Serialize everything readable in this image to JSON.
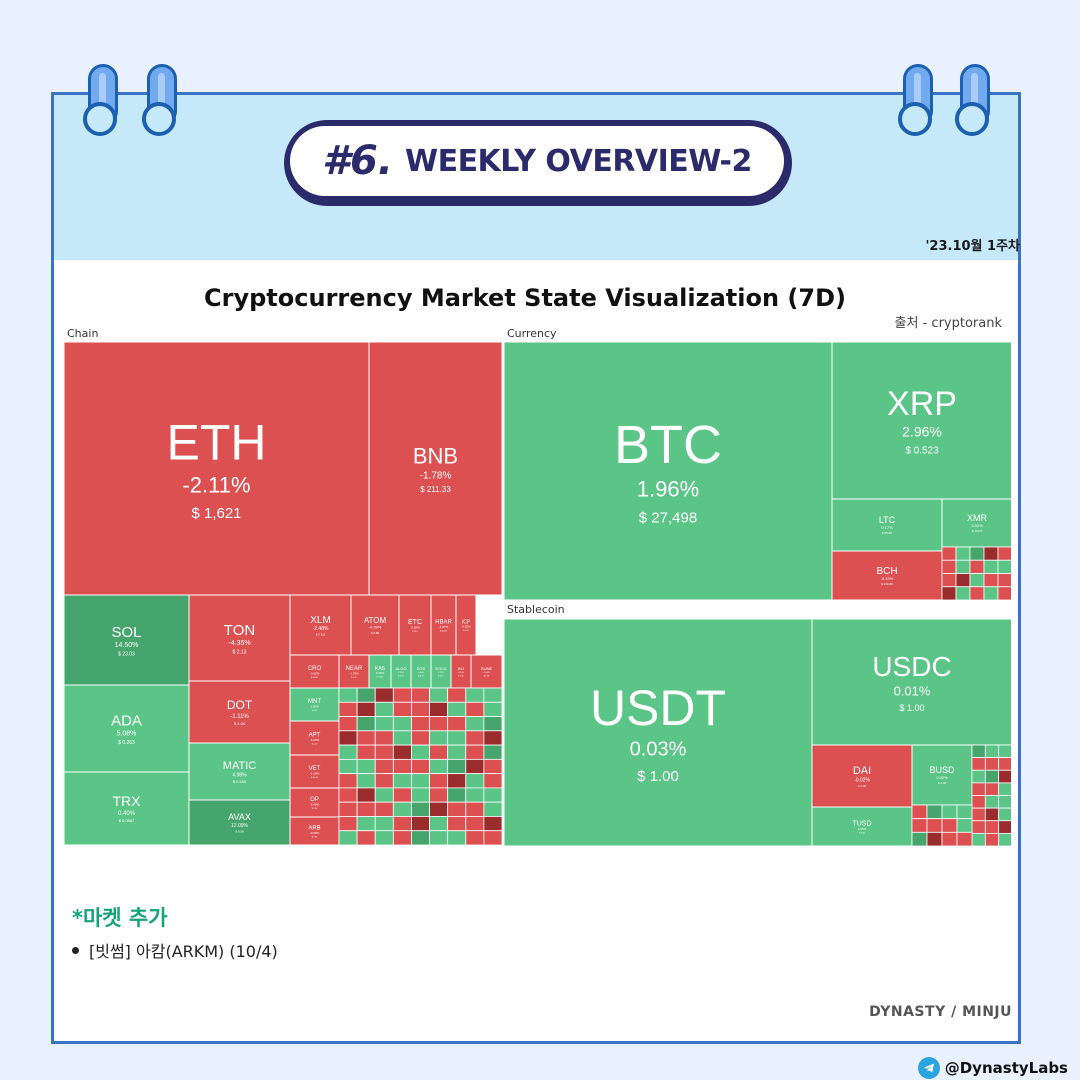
{
  "header": {
    "number": "#6.",
    "title": "WEEKLY OVERVIEW-2",
    "date": "'23.10월 1주차"
  },
  "chart_title": "Cryptocurrency Market State Visualization (7D)",
  "source": "출처 - cryptorank",
  "sections": {
    "chain": "Chain",
    "currency": "Currency",
    "stablecoin": "Stablecoin"
  },
  "colors": {
    "up": "#5bc487",
    "up_strong": "#46a56c",
    "down": "#dc5052",
    "down_strong": "#9a2c2e",
    "border": "#3a73c4",
    "accent": "#15a37a"
  },
  "chart_data": {
    "type": "treemap",
    "title": "Cryptocurrency Market State Visualization (7D)",
    "groups": [
      {
        "name": "Chain",
        "items": [
          {
            "symbol": "ETH",
            "change": "-2.11%",
            "price": "$ 1,621",
            "change_pct": -2.11
          },
          {
            "symbol": "BNB",
            "change": "-1.78%",
            "price": "$ 211.33",
            "change_pct": -1.78
          },
          {
            "symbol": "SOL",
            "change": "14.50%",
            "price": "$ 23.03",
            "change_pct": 14.5
          },
          {
            "symbol": "ADA",
            "change": "5.08%",
            "price": "$ 0.263",
            "change_pct": 5.08
          },
          {
            "symbol": "TRX",
            "change": "0.40%",
            "price": "$ 0.0887",
            "change_pct": 0.4
          },
          {
            "symbol": "TON",
            "change": "-4.35%",
            "price": "$ 2.13",
            "change_pct": -4.35
          },
          {
            "symbol": "DOT",
            "change": "-1.11%",
            "price": "$ 4.04",
            "change_pct": -1.11
          },
          {
            "symbol": "MATIC",
            "change": "4.98%",
            "price": "$ 0.555",
            "change_pct": 4.98
          },
          {
            "symbol": "AVAX",
            "change": "12.09%",
            "price": "$ 9.58",
            "change_pct": 12.09
          },
          {
            "symbol": "XLM",
            "change": "-2.48%",
            "price": "$ 0.111",
            "change_pct": -2.48
          },
          {
            "symbol": "ATOM",
            "change": "-4.29%",
            "price": "$ 6.86",
            "change_pct": -4.29
          },
          {
            "symbol": "ETC",
            "change": "-2.50%",
            "price": "$ 15.9",
            "change_pct": -2.5
          },
          {
            "symbol": "HBAR",
            "change": "-1.87%",
            "price": "$ 0.049",
            "change_pct": -1.87
          },
          {
            "symbol": "ICP",
            "change": "-3.02%",
            "price": "$ 3.05",
            "change_pct": -3.02
          },
          {
            "symbol": "CRO",
            "change": "-0.62%",
            "price": "$ 0.050",
            "change_pct": -0.62
          },
          {
            "symbol": "NEAR",
            "change": "-1.78%",
            "price": "$ 1.05",
            "change_pct": -1.78
          },
          {
            "symbol": "KAS",
            "change": "3.40%",
            "price": "$ 0.045",
            "change_pct": 3.4
          },
          {
            "symbol": "ALGO",
            "change": "1.10%",
            "price": "$ 0.09",
            "change_pct": 1.1
          },
          {
            "symbol": "EOS",
            "change": "0.50%",
            "price": "$ 0.55",
            "change_pct": 0.5
          },
          {
            "symbol": "EGLD",
            "change": "1.20%",
            "price": "$ 24.5",
            "change_pct": 1.2
          },
          {
            "symbol": "INJ",
            "change": "-2.10%",
            "price": "$ 7.80",
            "change_pct": -2.1
          },
          {
            "symbol": "RUNE",
            "change": "-1.40%",
            "price": "$ 1.76",
            "change_pct": -1.4
          },
          {
            "symbol": "MNT",
            "change": "1.50%",
            "price": "$ 0.42",
            "change_pct": 1.5
          },
          {
            "symbol": "APT",
            "change": "-3.20%",
            "price": "$ 5.10",
            "change_pct": -3.2
          },
          {
            "symbol": "VET",
            "change": "-1.10%",
            "price": "$ 0.016",
            "change_pct": -1.1
          },
          {
            "symbol": "OP",
            "change": "-2.40%",
            "price": "$ 1.39",
            "change_pct": -2.4
          },
          {
            "symbol": "ARB",
            "change": "-0.80%",
            "price": "$ 0.88",
            "change_pct": -0.8
          }
        ]
      },
      {
        "name": "Currency",
        "items": [
          {
            "symbol": "BTC",
            "change": "1.96%",
            "price": "$ 27,498",
            "change_pct": 1.96
          },
          {
            "symbol": "XRP",
            "change": "2.96%",
            "price": "$ 0.523",
            "change_pct": 2.96
          },
          {
            "symbol": "LTC",
            "change": "0.17%",
            "price": "$ 65.80",
            "change_pct": 0.17
          },
          {
            "symbol": "XMR",
            "change": "3.02%",
            "price": "$ 150.5",
            "change_pct": 3.02
          },
          {
            "symbol": "BCH",
            "change": "-3.19%",
            "price": "$ 229.80",
            "change_pct": -3.19
          }
        ]
      },
      {
        "name": "Stablecoin",
        "items": [
          {
            "symbol": "USDT",
            "change": "0.03%",
            "price": "$ 1.00",
            "change_pct": 0.03
          },
          {
            "symbol": "USDC",
            "change": "0.01%",
            "price": "$ 1.00",
            "change_pct": 0.01
          },
          {
            "symbol": "DAI",
            "change": "-0.02%",
            "price": "$ 1.00",
            "change_pct": -0.02
          },
          {
            "symbol": "BUSD",
            "change": "0.02%",
            "price": "$ 1.00",
            "change_pct": 0.02
          },
          {
            "symbol": "TUSD",
            "change": "0.05%",
            "price": "$ 1.00",
            "change_pct": 0.05
          }
        ]
      }
    ]
  },
  "market_add": {
    "title": "*마켓 추가",
    "items": [
      "[빗썸] 아캄(ARKM) (10/4)"
    ]
  },
  "footer": {
    "brand": "DYNASTY / MINJU",
    "handle": "@DynastyLabs"
  }
}
